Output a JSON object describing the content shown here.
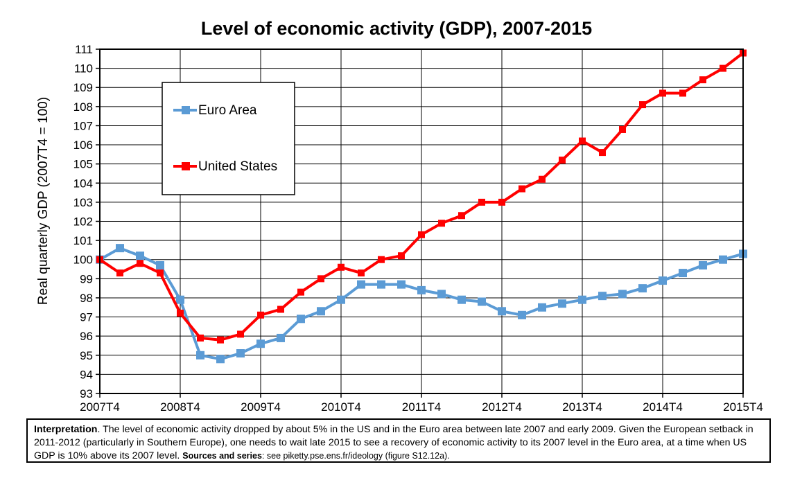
{
  "chart_data": {
    "type": "line",
    "title": "Level of economic activity (GDP), 2007-2015",
    "ylabel": "Real quarterly GDP (2007T4 = 100)",
    "xlabel": "",
    "ylim": [
      93,
      111
    ],
    "yticks": [
      93,
      94,
      95,
      96,
      97,
      98,
      99,
      100,
      101,
      102,
      103,
      104,
      105,
      106,
      107,
      108,
      109,
      110,
      111
    ],
    "x_tick_labels": [
      "2007T4",
      "2008T4",
      "2009T4",
      "2010T4",
      "2011T4",
      "2012T4",
      "2013T4",
      "2014T4",
      "2015T4"
    ],
    "grid": true,
    "legend_position": "upper-left",
    "x": [
      "2007T4",
      "2008T1",
      "2008T2",
      "2008T3",
      "2008T4",
      "2009T1",
      "2009T2",
      "2009T3",
      "2009T4",
      "2010T1",
      "2010T2",
      "2010T3",
      "2010T4",
      "2011T1",
      "2011T2",
      "2011T3",
      "2011T4",
      "2012T1",
      "2012T2",
      "2012T3",
      "2012T4",
      "2013T1",
      "2013T2",
      "2013T3",
      "2013T4",
      "2014T1",
      "2014T2",
      "2014T3",
      "2014T4",
      "2015T1",
      "2015T2",
      "2015T3",
      "2015T4"
    ],
    "series": [
      {
        "name": "Euro Area",
        "color": "#5B9BD5",
        "marker": "square",
        "values": [
          100.0,
          100.6,
          100.2,
          99.7,
          97.9,
          95.0,
          94.8,
          95.1,
          95.6,
          95.9,
          96.9,
          97.3,
          97.9,
          98.7,
          98.7,
          98.7,
          98.4,
          98.2,
          97.9,
          97.8,
          97.3,
          97.1,
          97.5,
          97.7,
          97.9,
          98.1,
          98.2,
          98.5,
          98.9,
          99.3,
          99.7,
          100.0,
          100.3
        ]
      },
      {
        "name": "United States",
        "color": "#FF0000",
        "marker": "square",
        "values": [
          100.0,
          99.3,
          99.8,
          99.3,
          97.2,
          95.9,
          95.8,
          96.1,
          97.1,
          97.4,
          98.3,
          99.0,
          99.6,
          99.3,
          100.0,
          100.2,
          101.3,
          101.9,
          102.3,
          103.0,
          103.0,
          103.7,
          104.2,
          105.2,
          106.2,
          105.6,
          106.8,
          108.1,
          108.7,
          108.7,
          109.4,
          110.0,
          110.8
        ]
      }
    ]
  },
  "interpretation": {
    "label": "Interpretation",
    "text": ". The level of economic activity dropped by about 5% in the US and in the Euro area between late 2007 and early 2009. Given the European setback in 2011-2012 (particularly in Southern Europe), one needs to wait late 2015 to see a recovery of economic activity to its 2007 level in the Euro area, at a time when US GDP is 10% above its 2007 level.",
    "sources_label": "Sources and series",
    "sources_text": ": see piketty.pse.ens.fr/ideology (figure S12.12a)."
  }
}
